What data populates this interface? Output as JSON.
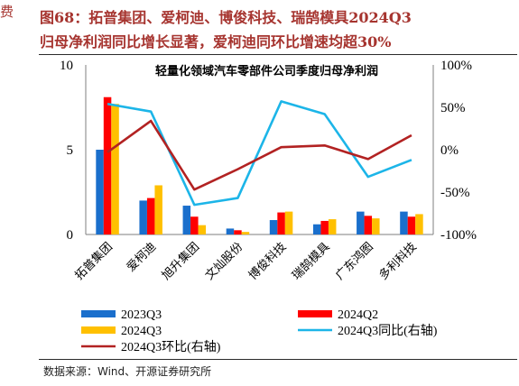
{
  "figure": {
    "title_line1": "图68：拓普集团、爱柯迪、博俊科技、瑞鹄模具2024Q3",
    "title_line2": "归母净利润同比增长显著，爱柯迪同环比增速均超30%",
    "source": "数据来源：Wind、开源证券研究所",
    "left_fragment": "费"
  },
  "chart_data": {
    "type": "bar",
    "title": "轻量化领域汽车零部件公司季度归母净利润",
    "categories": [
      "拓普集团",
      "爱柯迪",
      "旭升集团",
      "文灿股份",
      "博俊科技",
      "瑞鹄模具",
      "广东鸿图",
      "多利科技"
    ],
    "left_axis": {
      "ylim": [
        0,
        10
      ],
      "ticks": [
        "0",
        "5",
        "10"
      ]
    },
    "right_axis": {
      "ylim": [
        -100,
        100
      ],
      "ticks": [
        "-100%",
        "-50%",
        "0%",
        "50%",
        "100%"
      ]
    },
    "series": [
      {
        "name": "2023Q3",
        "kind": "bar",
        "axis": "left",
        "color": "#1a6fcc",
        "values": [
          5.0,
          2.0,
          1.7,
          0.35,
          0.85,
          0.6,
          1.35,
          1.35
        ]
      },
      {
        "name": "2024Q2",
        "kind": "bar",
        "axis": "left",
        "color": "#ff0000",
        "values": [
          8.1,
          2.15,
          1.05,
          0.25,
          1.3,
          0.8,
          1.1,
          1.05
        ]
      },
      {
        "name": "2024Q3",
        "kind": "bar",
        "axis": "left",
        "color": "#ffc000",
        "values": [
          7.7,
          2.9,
          0.55,
          0.15,
          1.35,
          0.9,
          0.95,
          1.2
        ]
      },
      {
        "name": "2024Q3同比(右轴)",
        "kind": "line",
        "axis": "right",
        "color": "#1cb5e8",
        "values": [
          54,
          45,
          -65,
          -57,
          57,
          42,
          -32,
          -12
        ]
      },
      {
        "name": "2024Q3环比(右轴)",
        "kind": "line",
        "axis": "right",
        "color": "#b22222",
        "values": [
          -3,
          34,
          -47,
          -23,
          3,
          5,
          -11,
          17
        ]
      }
    ]
  }
}
